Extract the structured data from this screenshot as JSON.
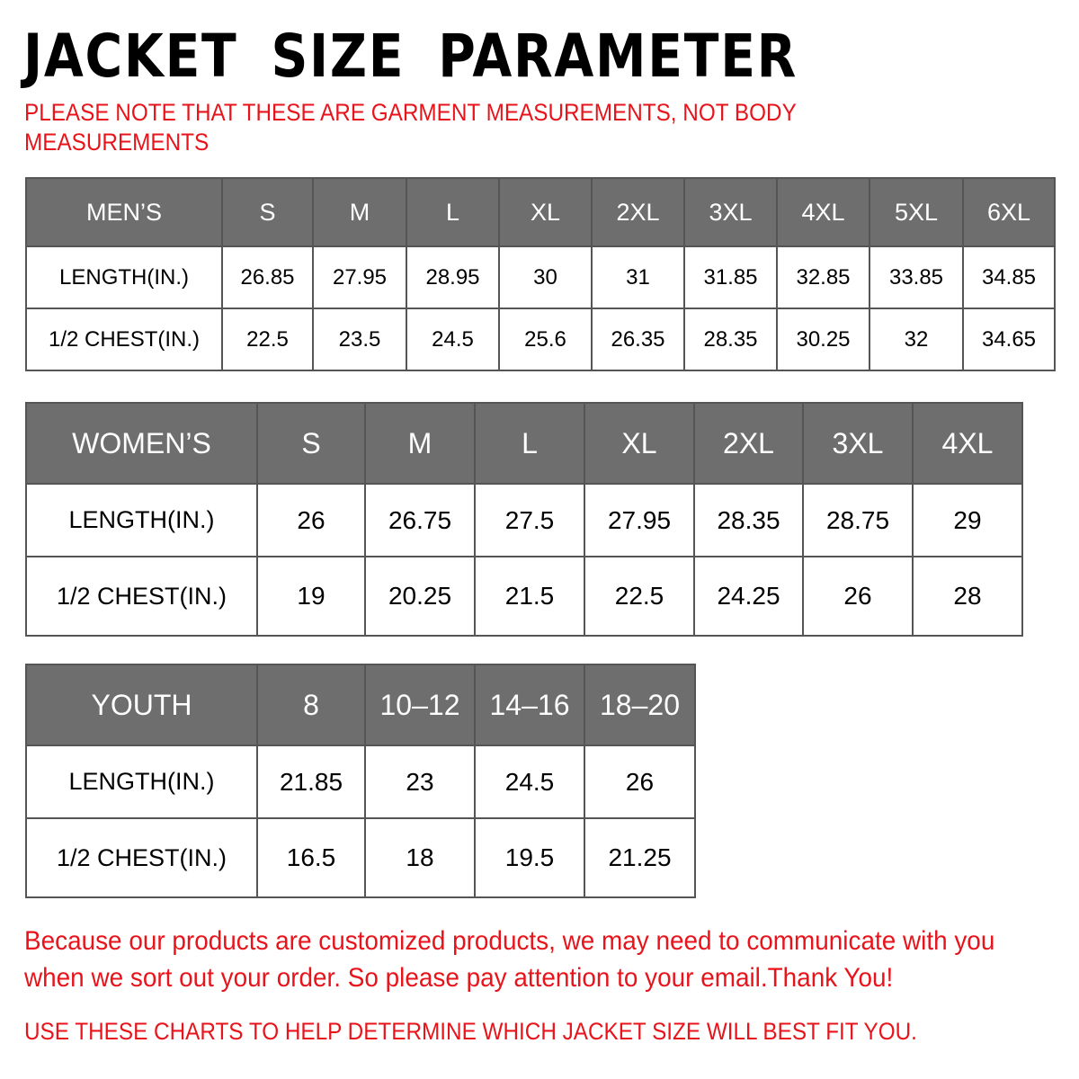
{
  "title": "JACKET SIZE PARAMETER",
  "note_line1": "PLEASE NOTE THAT THESE ARE GARMENT MEASUREMENTS, NOT BODY",
  "note_line2": "MEASUREMENTS",
  "colors": {
    "header_bg": "#6e6e6e",
    "accent_red": "#e8141b"
  },
  "tables": [
    {
      "header": "MEN’S",
      "sizes": [
        "S",
        "M",
        "L",
        "XL",
        "2XL",
        "3XL",
        "4XL",
        "5XL",
        "6XL"
      ],
      "rows": [
        {
          "label": "LENGTH(IN.)",
          "values": [
            "26.85",
            "27.95",
            "28.95",
            "30",
            "31",
            "31.85",
            "32.85",
            "33.85",
            "34.85"
          ]
        },
        {
          "label": "1/2 CHEST(IN.)",
          "values": [
            "22.5",
            "23.5",
            "24.5",
            "25.6",
            "26.35",
            "28.35",
            "30.25",
            "32",
            "34.65"
          ]
        }
      ]
    },
    {
      "header": "WOMEN’S",
      "sizes": [
        "S",
        "M",
        "L",
        "XL",
        "2XL",
        "3XL",
        "4XL"
      ],
      "rows": [
        {
          "label": "LENGTH(IN.)",
          "values": [
            "26",
            "26.75",
            "27.5",
            "27.95",
            "28.35",
            "28.75",
            "29"
          ]
        },
        {
          "label": "1/2 CHEST(IN.)",
          "values": [
            "19",
            "20.25",
            "21.5",
            "22.5",
            "24.25",
            "26",
            "28"
          ]
        }
      ]
    },
    {
      "header": "YOUTH",
      "sizes": [
        "8",
        "10–12",
        "14–16",
        "18–20"
      ],
      "rows": [
        {
          "label": "LENGTH(IN.)",
          "values": [
            "21.85",
            "23",
            "24.5",
            "26"
          ]
        },
        {
          "label": "1/2 CHEST(IN.)",
          "values": [
            "16.5",
            "18",
            "19.5",
            "21.25"
          ]
        }
      ]
    }
  ],
  "footer_line1": "Because our products are customized products, we may need to communicate with you",
  "footer_line2": "when we sort out your order. So please pay attention to your email.Thank You!",
  "footer_line3": "USE THESE CHARTS TO HELP DETERMINE WHICH JACKET SIZE WILL BEST FIT YOU."
}
